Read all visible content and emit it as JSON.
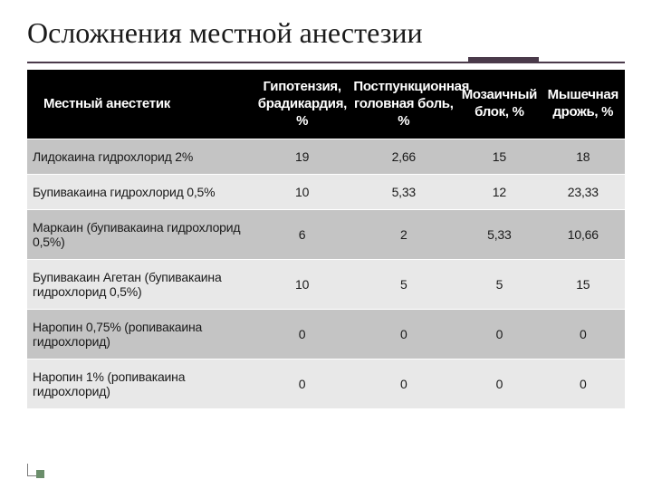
{
  "slide": {
    "title": "Осложнения местной анестезии",
    "title_fontsize": 32,
    "title_color": "#1a1a1a",
    "underline_color": "#4a3a4a",
    "background_color": "#ffffff"
  },
  "table": {
    "type": "table",
    "header_bg": "#000000",
    "header_fg": "#ffffff",
    "header_fontsize": 15,
    "row_odd_bg": "#c4c4c4",
    "row_even_bg": "#e8e8e8",
    "cell_fontsize": 14,
    "cell_color": "#1a1a1a",
    "columns": [
      "Местный анестетик",
      "Гипотензия, брадикардия, %",
      "Постпункционная головная боль, %",
      "Мозаичный блок, %",
      "Мышечная дрожь, %"
    ],
    "column_widths_pct": [
      38,
      16,
      18,
      14,
      14
    ],
    "rows": [
      {
        "label": "Лидокаина гидрохлорид 2%",
        "values": [
          "19",
          "2,66",
          "15",
          "18"
        ]
      },
      {
        "label": "Бупивакаина гидрохлорид 0,5%",
        "values": [
          "10",
          "5,33",
          "12",
          "23,33"
        ]
      },
      {
        "label": "Маркаин (бупивакаина гидрохлорид 0,5%)",
        "values": [
          "6",
          "2",
          "5,33",
          "10,66"
        ]
      },
      {
        "label": "Бупивакаин Агетан (бупивакаина гидрохлорид 0,5%)",
        "values": [
          "10",
          "5",
          "5",
          "15"
        ]
      },
      {
        "label": "Наропин 0,75% (ропивакаина гидрохлорид)",
        "values": [
          "0",
          "0",
          "0",
          "0"
        ]
      },
      {
        "label": "Наропин 1% (ропивакаина гидрохлорид)",
        "values": [
          "0",
          "0",
          "0",
          "0"
        ]
      }
    ]
  },
  "footer": {
    "marker_color": "#7a7a7a",
    "dot_color": "#6b8e6b"
  }
}
